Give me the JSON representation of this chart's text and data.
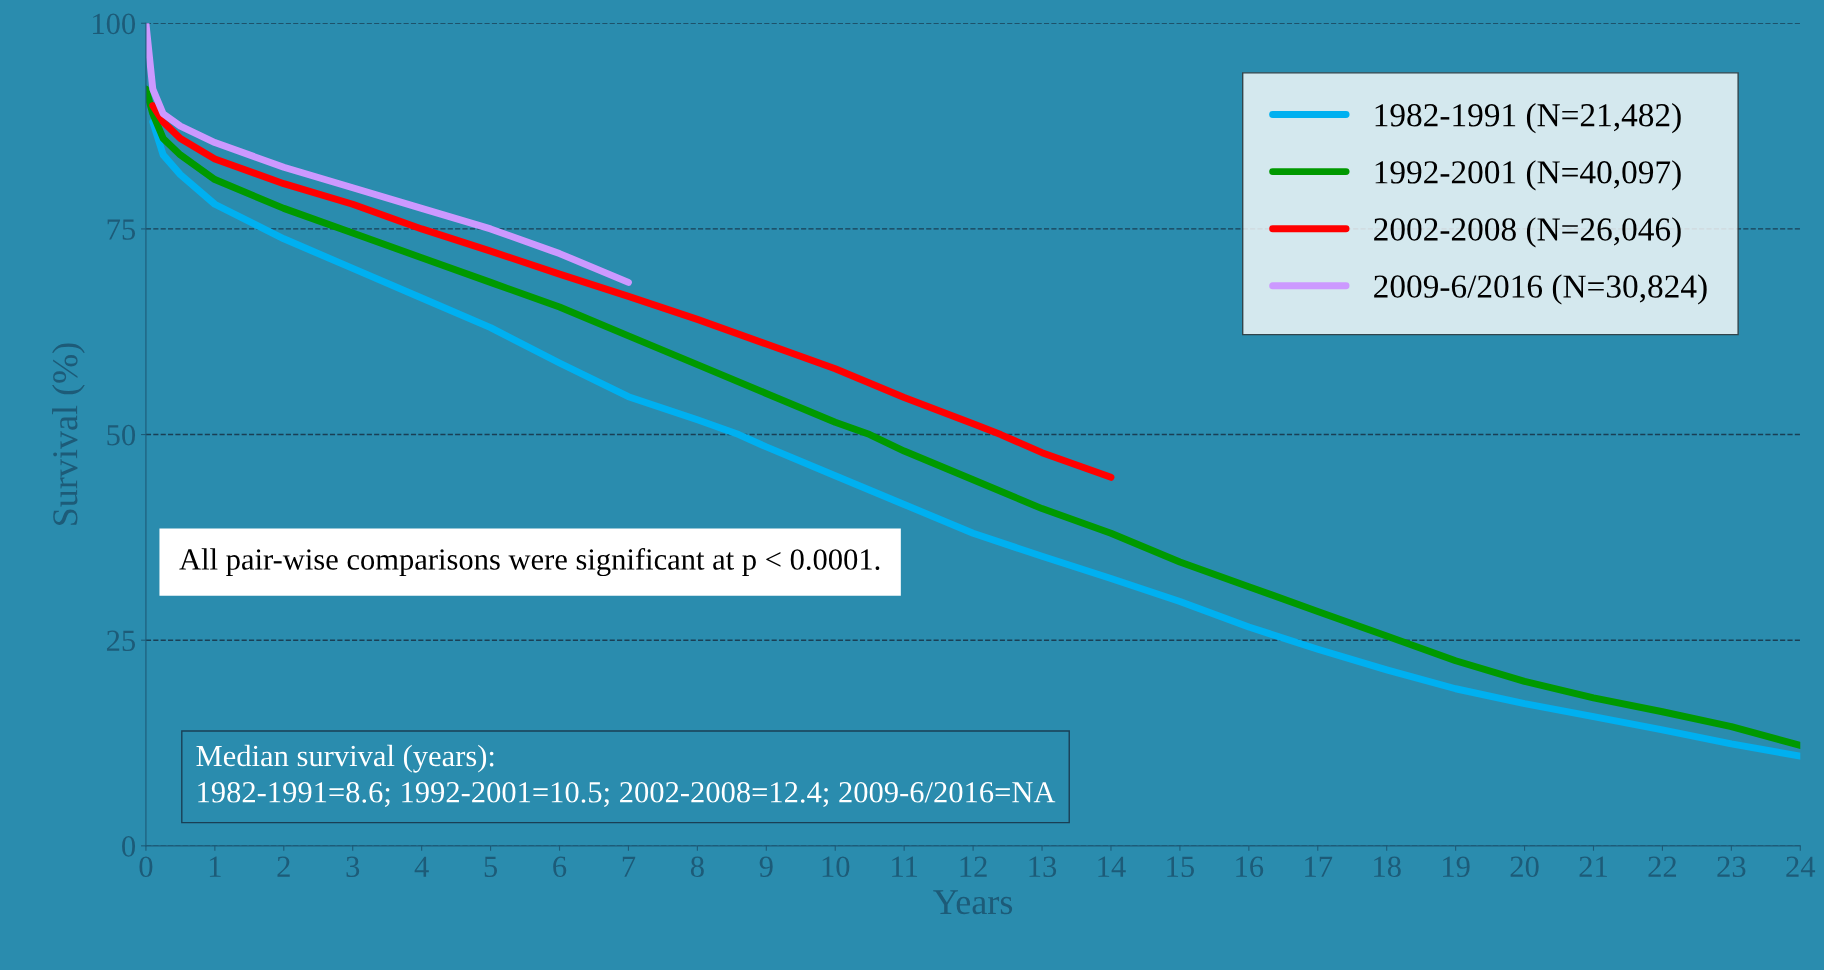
{
  "chart_data": {
    "type": "line",
    "xlabel": "Years",
    "ylabel": "Survival (%)",
    "xlim": [
      0,
      24
    ],
    "xticks": [
      0,
      1,
      2,
      3,
      4,
      5,
      6,
      7,
      8,
      9,
      10,
      11,
      12,
      13,
      14,
      15,
      16,
      17,
      18,
      19,
      20,
      21,
      22,
      23,
      24
    ],
    "ylim": [
      0,
      100
    ],
    "yticks": [
      0,
      25,
      50,
      75,
      100
    ],
    "grid": "y",
    "legend": "top right",
    "line_style": "solid",
    "marker": "none",
    "series": [
      {
        "name": "1982-1991 (N=21,482)",
        "color": "#00b0f0",
        "x": [
          0.1,
          0.25,
          0.5,
          1,
          2,
          3,
          4,
          5,
          6,
          7,
          8,
          8.6,
          9,
          10,
          11,
          12,
          13,
          14,
          15,
          16,
          17,
          18,
          19,
          20,
          21,
          22,
          23,
          24
        ],
        "values": [
          88,
          84,
          81.6,
          78,
          73.8,
          70.2,
          66.6,
          63,
          58.7,
          54.6,
          51.8,
          50,
          48.5,
          45,
          41.5,
          38,
          35.2,
          32.5,
          29.7,
          26.6,
          23.9,
          21.4,
          19.1,
          17.3,
          15.7,
          14.1,
          12.4,
          10.9
        ]
      },
      {
        "name": "1992-2001 (N=40,097)",
        "color": "#009900",
        "x": [
          0,
          0.1,
          0.25,
          0.5,
          1,
          2,
          3,
          4,
          5,
          6,
          7,
          8,
          9,
          10,
          10.5,
          11,
          12,
          13,
          14,
          15,
          16,
          17,
          18,
          19,
          20,
          21,
          22,
          23,
          24
        ],
        "values": [
          92,
          89,
          86,
          84,
          81,
          77.5,
          74.5,
          71.5,
          68.5,
          65.5,
          62,
          58.5,
          55,
          51.5,
          50,
          48,
          44.5,
          41,
          38,
          34.5,
          31.5,
          28.5,
          25.5,
          22.5,
          20,
          18,
          16.3,
          14.5,
          12.2
        ]
      },
      {
        "name": "2002-2008 (N=26,046)",
        "color": "#ff0000",
        "x": [
          0.1,
          0.25,
          0.5,
          1,
          2,
          3,
          4,
          5,
          6,
          7,
          8,
          9,
          10,
          11,
          12,
          12.4,
          13,
          14
        ],
        "values": [
          90,
          88,
          86,
          83.5,
          80.5,
          78,
          75,
          72.3,
          69.5,
          66.8,
          64,
          61,
          58,
          54.5,
          51.3,
          50,
          47.8,
          44.8
        ]
      },
      {
        "name": "2009-6/2016 (N=30,824)",
        "color": "#cc99ff",
        "x": [
          0,
          0.1,
          0.25,
          0.5,
          1,
          2,
          3,
          4,
          5,
          6,
          7
        ],
        "values": [
          100,
          92,
          89,
          87.5,
          85.5,
          82.5,
          80,
          77.5,
          75,
          72,
          68.5
        ]
      }
    ],
    "annotations": [
      "All pair-wise comparisons were significant at p < 0.0001.",
      "Median survival (years):\n1982-1991=8.6; 1992-2001=10.5; 2002-2008=12.4; 2009-6/2016=NA"
    ]
  }
}
